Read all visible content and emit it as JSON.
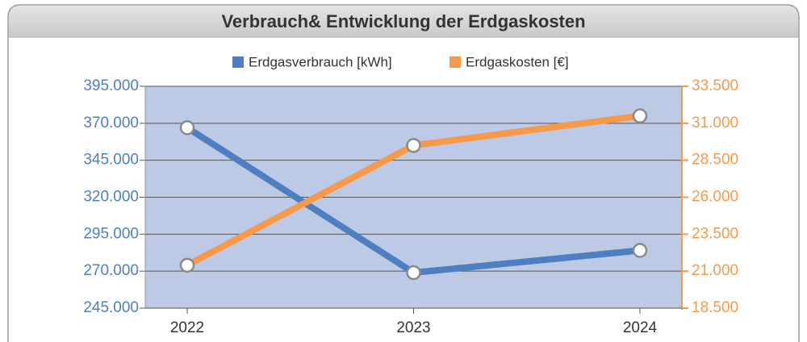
{
  "chart_data": {
    "type": "line",
    "title": "Verbrauch& Entwicklung der Erdgaskosten",
    "categories": [
      "2022",
      "2023",
      "2024"
    ],
    "series": [
      {
        "name": "Erdgasverbrauch [kWh]",
        "color": "#4e7fc2",
        "values": [
          367000,
          269000,
          284000
        ]
      },
      {
        "name": "Erdgaskosten [€]",
        "color": "#f7994a",
        "axis": "y2",
        "values": [
          21400,
          29500,
          31500
        ]
      }
    ],
    "ylim": [
      245000,
      395000
    ],
    "yticks": [
      {
        "value": 245000,
        "label": "245.000"
      },
      {
        "value": 270000,
        "label": "270.000"
      },
      {
        "value": 295000,
        "label": "295.000"
      },
      {
        "value": 320000,
        "label": "320.000"
      },
      {
        "value": 345000,
        "label": "345.000"
      },
      {
        "value": 370000,
        "label": "370.000"
      },
      {
        "value": 395000,
        "label": "395.000"
      }
    ],
    "y2lim": [
      18500,
      33500
    ],
    "y2ticks": [
      {
        "value": 18500,
        "label": "18.500"
      },
      {
        "value": 21000,
        "label": "21.000"
      },
      {
        "value": 23500,
        "label": "23.500"
      },
      {
        "value": 26000,
        "label": "26.000"
      },
      {
        "value": 28500,
        "label": "28.500"
      },
      {
        "value": 31000,
        "label": "31.000"
      },
      {
        "value": 33500,
        "label": "33.500"
      }
    ],
    "grid": true,
    "legend": "top"
  }
}
